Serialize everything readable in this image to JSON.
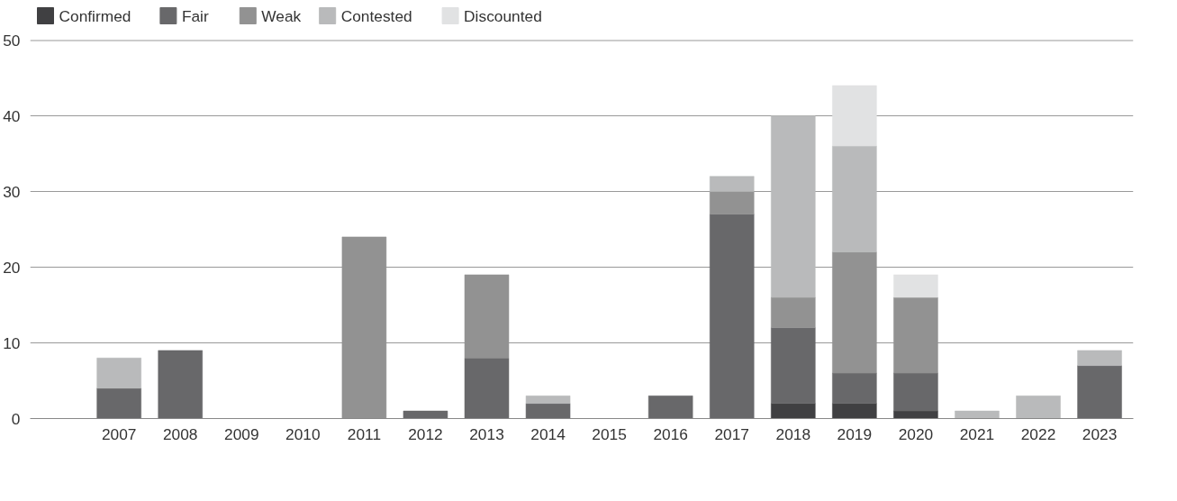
{
  "chart_data": {
    "type": "bar",
    "stacked": true,
    "categories": [
      "2007",
      "2008",
      "2009",
      "2010",
      "2011",
      "2012",
      "2013",
      "2014",
      "2015",
      "2016",
      "2017",
      "2018",
      "2019",
      "2020",
      "2021",
      "2022",
      "2023"
    ],
    "series": [
      {
        "name": "Confirmed",
        "color": "#404042",
        "values": [
          null,
          null,
          null,
          null,
          null,
          null,
          null,
          null,
          null,
          null,
          null,
          2,
          2,
          1,
          null,
          null,
          null
        ]
      },
      {
        "name": "Fair",
        "color": "#68686a",
        "values": [
          4,
          9,
          null,
          null,
          null,
          1,
          8,
          2,
          null,
          3,
          27,
          10,
          4,
          5,
          null,
          null,
          7
        ]
      },
      {
        "name": "Weak",
        "color": "#929292",
        "values": [
          null,
          null,
          null,
          null,
          24,
          null,
          11,
          null,
          null,
          null,
          3,
          4,
          16,
          10,
          null,
          null,
          null
        ]
      },
      {
        "name": "Contested",
        "color": "#b9babb",
        "values": [
          4,
          null,
          null,
          null,
          null,
          null,
          null,
          1,
          null,
          null,
          2,
          24,
          14,
          null,
          1,
          3,
          2
        ]
      },
      {
        "name": "Discounted",
        "color": "#e1e2e3",
        "values": [
          null,
          null,
          null,
          null,
          null,
          null,
          null,
          null,
          null,
          null,
          null,
          null,
          8,
          3,
          null,
          null,
          null
        ]
      }
    ],
    "ylim": [
      0,
      50
    ],
    "yticks": [
      0,
      10,
      20,
      30,
      40,
      50
    ],
    "grid": "y",
    "legend": "top left"
  }
}
